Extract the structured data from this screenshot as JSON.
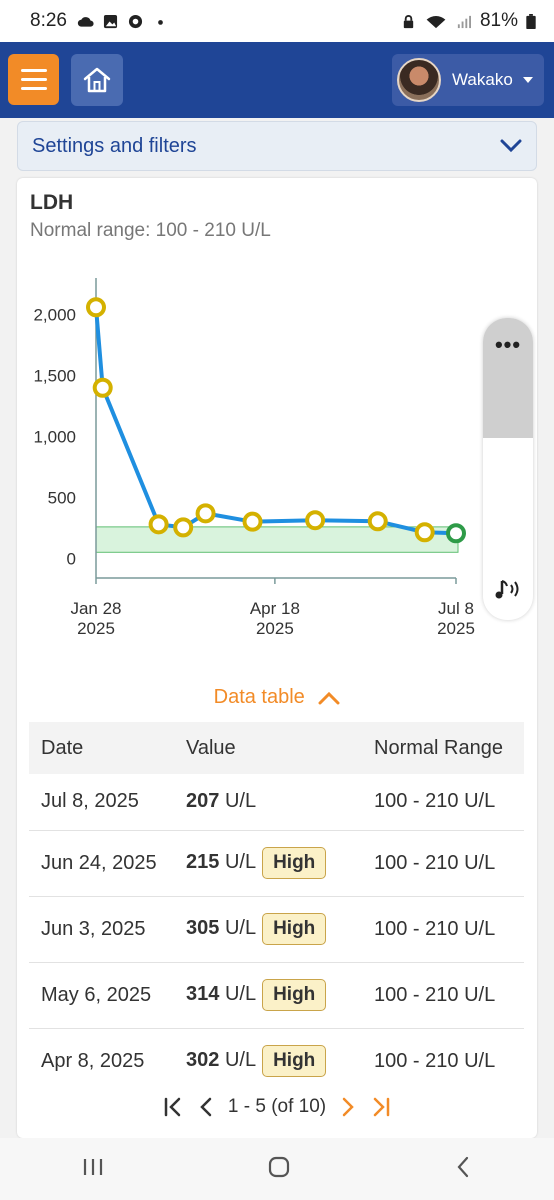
{
  "status_bar": {
    "time": "8:26",
    "battery": "81%"
  },
  "header": {
    "username": "Wakako",
    "menu_icon": "hamburger-menu-icon",
    "home_icon": "home-icon"
  },
  "settings": {
    "label": "Settings and filters"
  },
  "card": {
    "title": "LDH",
    "normal_range_text": "Normal range: 100 - 210 U/L"
  },
  "chart_data": {
    "type": "line",
    "title": "LDH",
    "ylabel": "",
    "xlabel": "",
    "y_ticks": [
      "2,000",
      "1,500",
      "1,000",
      "500",
      "0"
    ],
    "y_tick_values": [
      2000,
      1500,
      1000,
      500,
      0
    ],
    "x_ticks": [
      {
        "date": "2025-01-28",
        "line1": "Jan 28",
        "line2": "2025"
      },
      {
        "date": "2025-04-18",
        "line1": "Apr 18",
        "line2": "2025"
      },
      {
        "date": "2025-07-08",
        "line1": "Jul 8",
        "line2": "2025"
      }
    ],
    "ylim": [
      -160,
      2300
    ],
    "xlim": [
      "2025-01-28",
      "2025-07-08"
    ],
    "normal_range": [
      100,
      210
    ],
    "series": [
      {
        "points": [
          {
            "x": "2025-01-28",
            "y": 2060
          },
          {
            "x": "2025-01-31",
            "y": 1400
          },
          {
            "x": "2025-02-25",
            "y": 280
          },
          {
            "x": "2025-03-08",
            "y": 255
          },
          {
            "x": "2025-03-18",
            "y": 370
          },
          {
            "x": "2025-04-08",
            "y": 302
          },
          {
            "x": "2025-05-06",
            "y": 314
          },
          {
            "x": "2025-06-03",
            "y": 305
          },
          {
            "x": "2025-06-24",
            "y": 215
          },
          {
            "x": "2025-07-08",
            "y": 207
          }
        ]
      }
    ],
    "colors": {
      "line": "#1f8fe0",
      "point_high": "#d4b100",
      "point_normal": "#2e9b48",
      "normal_band": "#d9f3dd"
    }
  },
  "side_control": {
    "more_label": "•••",
    "sound_icon": "sound-music-icon"
  },
  "data_table": {
    "toggle_label": "Data table",
    "headers": [
      "Date",
      "Value",
      "Normal Range"
    ],
    "rows": [
      {
        "date": "Jul 8, 2025",
        "value": "207",
        "unit": "U/L",
        "flag": "",
        "range": "100 - 210 U/L"
      },
      {
        "date": "Jun 24, 2025",
        "value": "215",
        "unit": "U/L",
        "flag": "High",
        "range": "100 - 210 U/L"
      },
      {
        "date": "Jun 3, 2025",
        "value": "305",
        "unit": "U/L",
        "flag": "High",
        "range": "100 - 210 U/L"
      },
      {
        "date": "May 6, 2025",
        "value": "314",
        "unit": "U/L",
        "flag": "High",
        "range": "100 - 210 U/L"
      },
      {
        "date": "Apr 8, 2025",
        "value": "302",
        "unit": "U/L",
        "flag": "High",
        "range": "100 - 210 U/L"
      }
    ]
  },
  "pagination": {
    "label": "1 - 5 (of 10)"
  }
}
